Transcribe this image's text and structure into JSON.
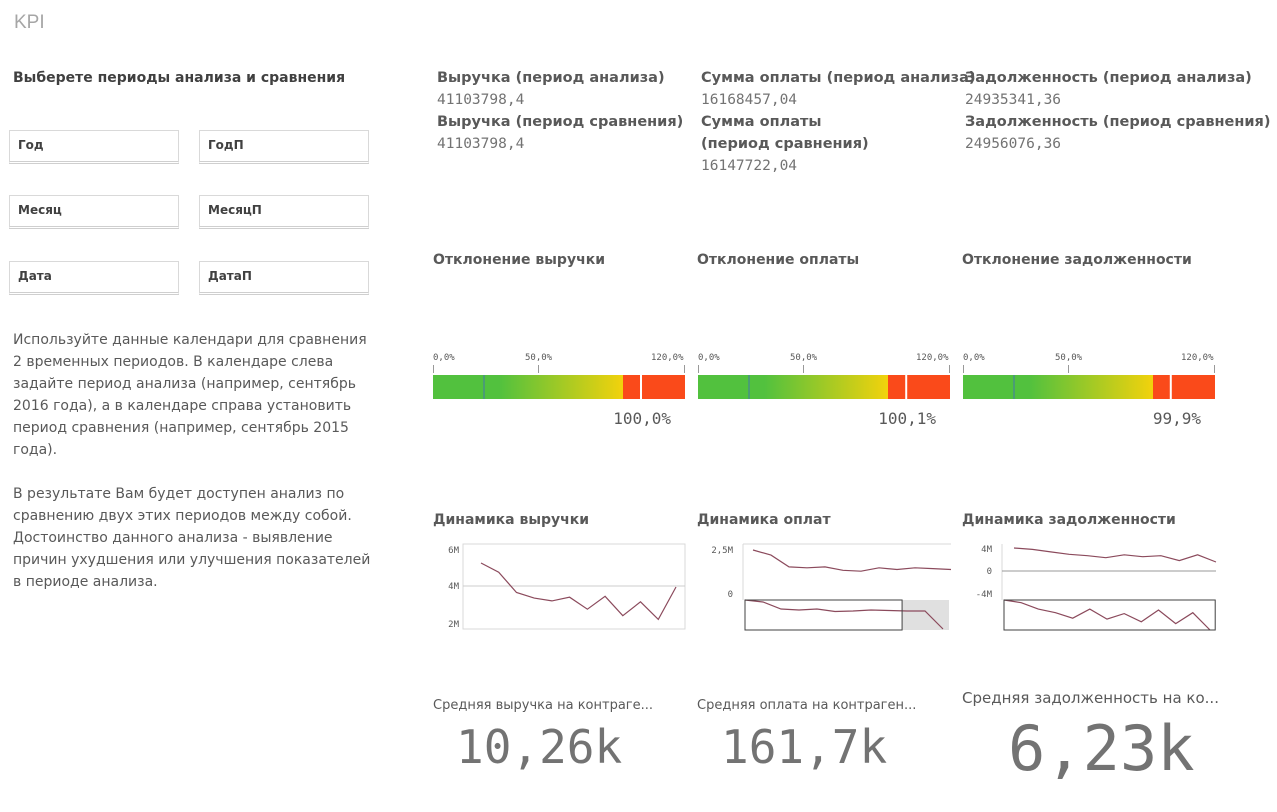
{
  "sheet": {
    "title": "KPI"
  },
  "filters": {
    "title": "Выберете периоды анализа и сравнения",
    "items": [
      {
        "label": "Год"
      },
      {
        "label": "ГодП"
      },
      {
        "label": "Месяц"
      },
      {
        "label": "МесяцП"
      },
      {
        "label": "Дата"
      },
      {
        "label": "ДатаП"
      }
    ]
  },
  "description": {
    "p1": "Используйте данные календари для сравнения 2 временных периодов. В календаре слева задайте период анализа (например, сентябрь 2016 года), а в календаре справа установить период сравнения (например, сентябрь 2015 года).",
    "p2": "В результате Вам будет доступен анализ по сравнению двух этих периодов между собой. Достоинство данного анализа - выявление причин ухудшения или улучшения показателей в периоде анализа."
  },
  "kpis": {
    "revenue": {
      "label_a": "Выручка (период анализа)",
      "value_a": "41103798,4",
      "label_b": "Выручка (период сравнения)",
      "value_b": "41103798,4"
    },
    "payment": {
      "label_a": "Сумма оплаты (период анализа)",
      "value_a": "16168457,04",
      "label_b": "Сумма оплаты (период сравнения)",
      "value_b": "16147722,04"
    },
    "debt": {
      "label_a": "Задолженность (период анализа)",
      "value_a": "24935341,36",
      "label_b": "Задолженность (период сравнения)",
      "value_b": "24956076,36"
    }
  },
  "gauges": {
    "ticks": [
      "0,0%",
      "50,0%",
      "120,0%"
    ],
    "colors": {
      "green": "#52c13e",
      "yellow": "#f2d20c",
      "red": "#fa4a1a",
      "marker": "#4477aa"
    },
    "revenue": {
      "title": "Отклонение выручки",
      "value_text": "100,0%",
      "value": 1.0
    },
    "payment": {
      "title": "Отклонение оплаты",
      "value_text": "100,1%",
      "value": 1.001
    },
    "debt": {
      "title": "Отклонение задолженности",
      "value_text": "99,9%",
      "value": 0.999
    }
  },
  "chart_data": [
    {
      "type": "line",
      "title": "Динамика выручки",
      "y_ticks": [
        "6M",
        "4M",
        "2M"
      ],
      "series": [
        {
          "values": [
            5.3,
            4.8,
            3.7,
            3.4,
            3.25,
            3.45,
            2.8,
            3.5,
            2.45,
            3.2,
            2.25,
            4.0
          ]
        }
      ]
    },
    {
      "type": "line",
      "title": "Динамика оплат",
      "y_ticks": [
        "2,5M",
        "0"
      ],
      "series": [
        {
          "values": [
            2.3,
            2.0,
            1.3,
            1.25,
            1.3,
            1.1,
            1.05,
            1.25,
            1.15,
            1.25,
            1.2,
            1.15
          ]
        }
      ],
      "navigator": {
        "series": [
          0,
          -0.2,
          -0.9,
          -1.0,
          -0.9,
          -1.15,
          -1.1,
          -1.0,
          -1.05,
          -1.1,
          -1.1,
          -2.9
        ],
        "selection": [
          0,
          0.77
        ]
      }
    },
    {
      "type": "line",
      "title": "Динамика задолженности",
      "y_ticks": [
        "4M",
        "0",
        "-4M"
      ],
      "series": [
        {
          "values": [
            4.2,
            3.9,
            3.4,
            2.9,
            2.6,
            2.2,
            2.8,
            2.4,
            2.6,
            1.6,
            2.8,
            1.3
          ]
        }
      ],
      "navigator": {
        "series": [
          0,
          -0.3,
          -1.0,
          -1.4,
          -2.0,
          -1.0,
          -2.1,
          -1.5,
          -2.4,
          -1.1,
          -2.6,
          -1.4,
          -3.3
        ],
        "selection": [
          0,
          0.72
        ]
      }
    }
  ],
  "averages": {
    "revenue": {
      "label": "Средняя выручка на контраге...",
      "value": "10,26k"
    },
    "payment": {
      "label": "Средняя оплата на контраген...",
      "value": "161,7k"
    },
    "debt": {
      "label": "Средняя задолженность на ко...",
      "value": "6,23k"
    }
  }
}
